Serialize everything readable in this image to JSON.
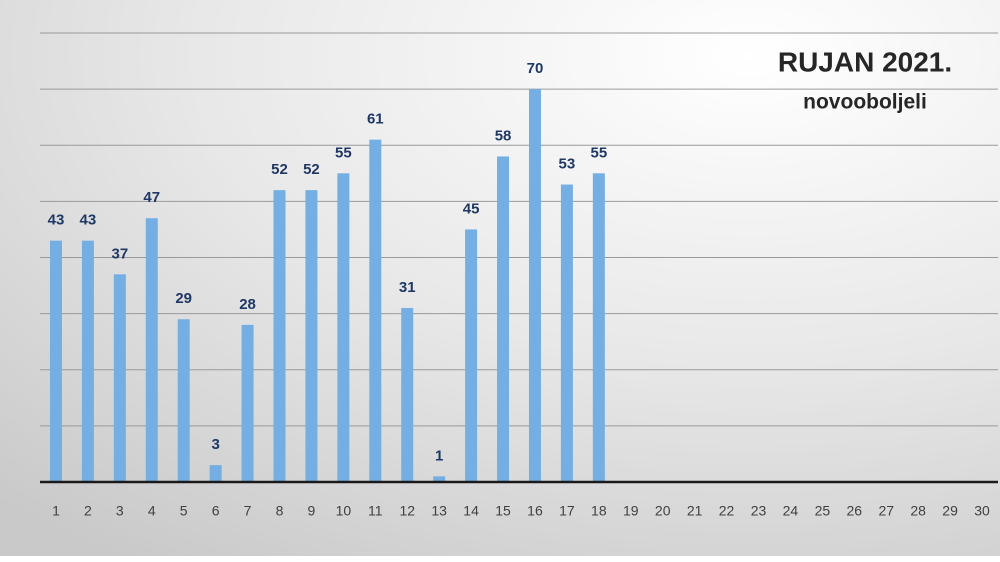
{
  "chart_data": {
    "type": "bar",
    "title": "RUJAN 2021.",
    "subtitle": "novooboljeli",
    "categories": [
      "1",
      "2",
      "3",
      "4",
      "5",
      "6",
      "7",
      "8",
      "9",
      "10",
      "11",
      "12",
      "13",
      "14",
      "15",
      "16",
      "17",
      "18",
      "19",
      "20",
      "21",
      "22",
      "23",
      "24",
      "25",
      "26",
      "27",
      "28",
      "29",
      "30"
    ],
    "values": [
      43,
      43,
      37,
      47,
      29,
      3,
      28,
      52,
      52,
      55,
      61,
      31,
      1,
      45,
      58,
      70,
      53,
      55,
      null,
      null,
      null,
      null,
      null,
      null,
      null,
      null,
      null,
      null,
      null,
      null
    ],
    "color": "#74aee3",
    "ylim": [
      0,
      80
    ],
    "yticks": [
      0,
      10,
      20,
      30,
      40,
      50,
      60,
      70,
      80
    ],
    "grid": true
  }
}
